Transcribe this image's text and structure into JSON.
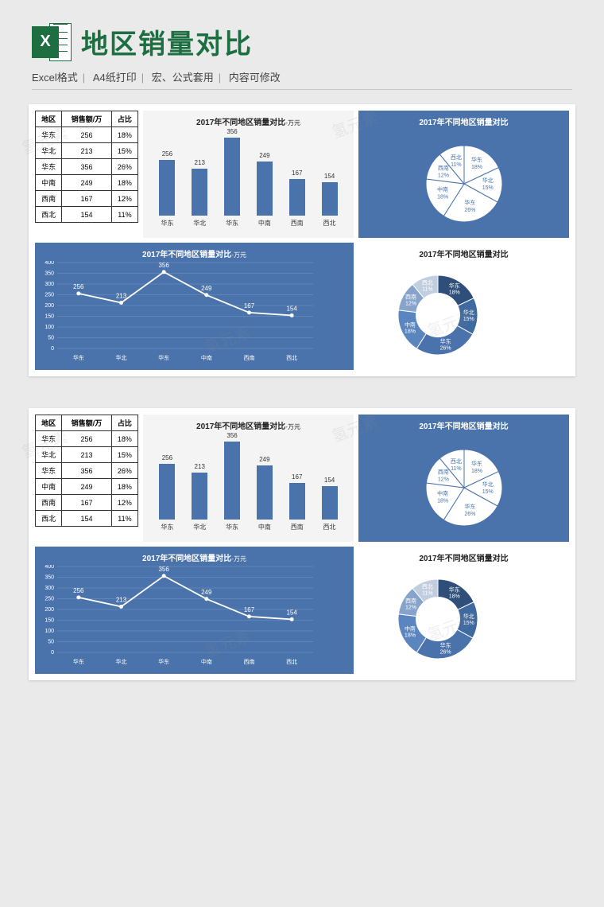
{
  "header": {
    "icon_letter": "X",
    "title": "地区销量对比",
    "subtitle_parts": [
      "Excel格式",
      "A4纸打印",
      "宏、公式套用",
      "内容可修改"
    ]
  },
  "colors": {
    "excel_green": "#1d6f42",
    "panel_blue": "#4a73ab",
    "bar_fill": "#4a73ab",
    "page_bg": "#eaeaea",
    "white": "#ffffff",
    "donut_segments": [
      "#3a5d8f",
      "#5a85bf",
      "#3a5d8f",
      "#5a85bf",
      "#8aa6c9",
      "#c6d2e2"
    ]
  },
  "table": {
    "columns": [
      "地区",
      "销售额/万",
      "占比"
    ],
    "rows": [
      [
        "华东",
        "256",
        "18%"
      ],
      [
        "华北",
        "213",
        "15%"
      ],
      [
        "华东",
        "356",
        "26%"
      ],
      [
        "中南",
        "249",
        "18%"
      ],
      [
        "西南",
        "167",
        "12%"
      ],
      [
        "西北",
        "154",
        "11%"
      ]
    ]
  },
  "bar_chart": {
    "title": "2017年不同地区销量对比",
    "unit": "-万元",
    "categories": [
      "华东",
      "华北",
      "华东",
      "中南",
      "西南",
      "西北"
    ],
    "values": [
      256,
      213,
      356,
      249,
      167,
      154
    ],
    "ymax": 400,
    "bar_color": "#4a73ab"
  },
  "pie_chart": {
    "title": "2017年不同地区销量对比",
    "slices": [
      {
        "label": "华东",
        "pct": 18
      },
      {
        "label": "华北",
        "pct": 15
      },
      {
        "label": "华东",
        "pct": 26
      },
      {
        "label": "中南",
        "pct": 18
      },
      {
        "label": "西南",
        "pct": 12
      },
      {
        "label": "西北",
        "pct": 11
      }
    ],
    "fill": "#ffffff",
    "stroke": "#4a73ab"
  },
  "line_chart": {
    "title": "2017年不同地区销量对比",
    "unit": "-万元",
    "categories": [
      "华东",
      "华北",
      "华东",
      "中南",
      "西南",
      "西北"
    ],
    "values": [
      256,
      213,
      356,
      249,
      167,
      154
    ],
    "ylim": [
      0,
      400
    ],
    "ytick_step": 50,
    "line_color": "#ffffff",
    "bg": "#4a73ab"
  },
  "donut_chart": {
    "title": "2017年不同地区销量对比",
    "slices": [
      {
        "label": "华东",
        "pct": 18,
        "color": "#2f4f7a"
      },
      {
        "label": "华北",
        "pct": 15,
        "color": "#3f6aa0"
      },
      {
        "label": "华东",
        "pct": 26,
        "color": "#4a73ab"
      },
      {
        "label": "中南",
        "pct": 18,
        "color": "#5a85bf"
      },
      {
        "label": "西南",
        "pct": 12,
        "color": "#86a4cb"
      },
      {
        "label": "西北",
        "pct": 11,
        "color": "#c0cee0"
      }
    ],
    "inner_radius_ratio": 0.55
  },
  "watermark": "氢元素"
}
